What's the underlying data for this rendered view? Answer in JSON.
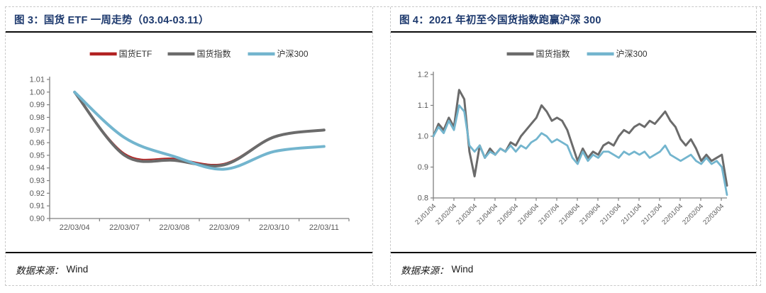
{
  "panels": [
    {
      "title": "图 3：国货 ETF 一周走势（03.04-03.11）",
      "source_label": "数据来源：",
      "source_value": "Wind"
    },
    {
      "title": "图 4：2021 年初至今国货指数跑赢沪深 300",
      "source_label": "数据来源：",
      "source_value": "Wind"
    }
  ],
  "colors": {
    "title_navy": "#1e3a6e",
    "axis_line": "#7f7f7f",
    "tick_text": "#595959",
    "legend_text": "#333333",
    "rule_black": "#0a0a0a",
    "border_dashed": "#c9c9c9",
    "series_red": "#b22222",
    "series_gray": "#6b6b6b",
    "series_blue": "#73b5ce"
  },
  "chart_data": [
    {
      "type": "line",
      "title": "国货 ETF 一周走势（03.04-03.11）",
      "categories": [
        "22/03/04",
        "22/03/07",
        "22/03/08",
        "22/03/09",
        "22/03/10",
        "22/03/11"
      ],
      "series": [
        {
          "name": "国货ETF",
          "color": "#b22222",
          "stroke_width": 1.8,
          "smooth": true,
          "values": [
            1.0,
            0.9515,
            0.9475,
            0.9435,
            0.965,
            0.97
          ]
        },
        {
          "name": "国货指数",
          "color": "#6b6b6b",
          "stroke_width": 4,
          "smooth": true,
          "values": [
            1.0,
            0.95,
            0.946,
            0.9425,
            0.9645,
            0.97
          ]
        },
        {
          "name": "沪深300",
          "color": "#73b5ce",
          "stroke_width": 4,
          "smooth": true,
          "values": [
            1.0,
            0.964,
            0.949,
            0.939,
            0.953,
            0.957
          ]
        }
      ],
      "ylim": [
        0.9,
        1.01
      ],
      "ytick_step": 0.01,
      "ytick_decimals": 2,
      "grid": false,
      "legend_position": "top"
    },
    {
      "type": "line",
      "title": "2021 年初至今国货指数跑赢沪深 300",
      "x_tick_labels": [
        "21/01/04",
        "21/02/04",
        "21/03/04",
        "21/04/04",
        "21/05/04",
        "21/06/04",
        "21/07/04",
        "21/08/04",
        "21/09/04",
        "21/10/04",
        "21/11/04",
        "21/12/04",
        "22/01/04",
        "22/02/04",
        "22/03/04"
      ],
      "series": [
        {
          "name": "国货指数",
          "color": "#6b6b6b",
          "stroke_width": 3,
          "smooth": false,
          "values": [
            1.0,
            1.04,
            1.02,
            1.06,
            1.03,
            1.15,
            1.12,
            0.95,
            0.87,
            0.97,
            0.93,
            0.96,
            0.94,
            0.96,
            0.95,
            0.98,
            0.97,
            1.0,
            1.02,
            1.04,
            1.06,
            1.1,
            1.08,
            1.05,
            1.06,
            1.05,
            1.02,
            0.97,
            0.92,
            0.96,
            0.93,
            0.95,
            0.94,
            0.97,
            0.98,
            0.97,
            1.0,
            1.02,
            1.01,
            1.03,
            1.04,
            1.03,
            1.05,
            1.04,
            1.06,
            1.08,
            1.05,
            1.03,
            0.99,
            0.97,
            0.99,
            0.96,
            0.92,
            0.94,
            0.92,
            0.93,
            0.94,
            0.84
          ]
        },
        {
          "name": "沪深300",
          "color": "#73b5ce",
          "stroke_width": 2.8,
          "smooth": false,
          "values": [
            1.0,
            1.03,
            1.01,
            1.05,
            1.02,
            1.1,
            1.08,
            0.97,
            0.95,
            0.97,
            0.93,
            0.95,
            0.94,
            0.96,
            0.95,
            0.97,
            0.95,
            0.97,
            0.96,
            0.98,
            0.99,
            1.01,
            1.0,
            0.98,
            0.99,
            0.98,
            0.97,
            0.93,
            0.91,
            0.95,
            0.92,
            0.94,
            0.93,
            0.95,
            0.95,
            0.94,
            0.93,
            0.95,
            0.94,
            0.95,
            0.94,
            0.95,
            0.93,
            0.94,
            0.95,
            0.97,
            0.94,
            0.93,
            0.92,
            0.93,
            0.94,
            0.92,
            0.91,
            0.93,
            0.91,
            0.92,
            0.9,
            0.81
          ]
        }
      ],
      "ylim": [
        0.8,
        1.2
      ],
      "ytick_step": 0.1,
      "ytick_decimals": 1,
      "grid": false,
      "legend_position": "top",
      "x_label_rotation": -45
    }
  ]
}
